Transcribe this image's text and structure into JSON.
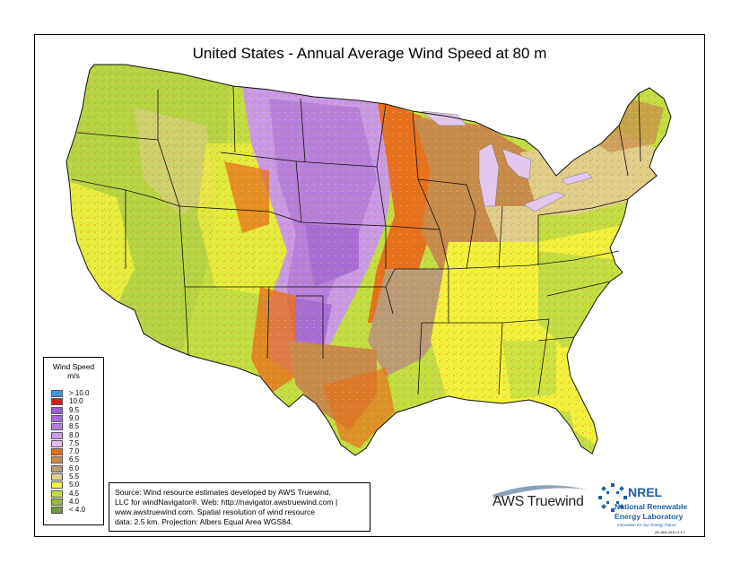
{
  "title": "United States - Annual Average Wind Speed at 80 m",
  "legend": {
    "title": "Wind Speed",
    "unit": "m/s",
    "items": [
      {
        "label": "> 10.0",
        "color": "#4a8fe6"
      },
      {
        "label": "10.0",
        "color": "#d7191c"
      },
      {
        "label": "9.5",
        "color": "#9b5fd1"
      },
      {
        "label": "9.0",
        "color": "#a66cd8"
      },
      {
        "label": "8.5",
        "color": "#b580e0"
      },
      {
        "label": "8.0",
        "color": "#c89ae8"
      },
      {
        "label": "7.5",
        "color": "#e5b8f0"
      },
      {
        "label": "7.0",
        "color": "#e7701e"
      },
      {
        "label": "6.5",
        "color": "#c78b4c"
      },
      {
        "label": "6.0",
        "color": "#b99c78"
      },
      {
        "label": "5.5",
        "color": "#e0cf8c"
      },
      {
        "label": "5.0",
        "color": "#f2f23c"
      },
      {
        "label": "4.5",
        "color": "#c3de43"
      },
      {
        "label": "4.0",
        "color": "#93bb3c"
      },
      {
        "label": "< 4.0",
        "color": "#6c9a3c"
      }
    ]
  },
  "source": {
    "lines": [
      "Source: Wind resource estimates developed by AWS Truewind,",
      "LLC for windNavigator®. Web: http://navigator.awstruewind.com |",
      "www.awstruewind.com. Spatial resolution of wind resource",
      "data: 2.5 km. Projection: Albers Equal Area WGS84."
    ]
  },
  "logos": {
    "aws": "AWS Truewind",
    "nrel": "NREL",
    "nrel_line1": "National Renewable",
    "nrel_line2": "Energy Laboratory",
    "nrel_tagline": "Innovation for Our Energy Future"
  },
  "date_stamp": "28-JAN-2010 4.1.1",
  "map_colors": {
    "water": "#ffffff",
    "lake": "#e2c8ee",
    "border": "#111111"
  }
}
